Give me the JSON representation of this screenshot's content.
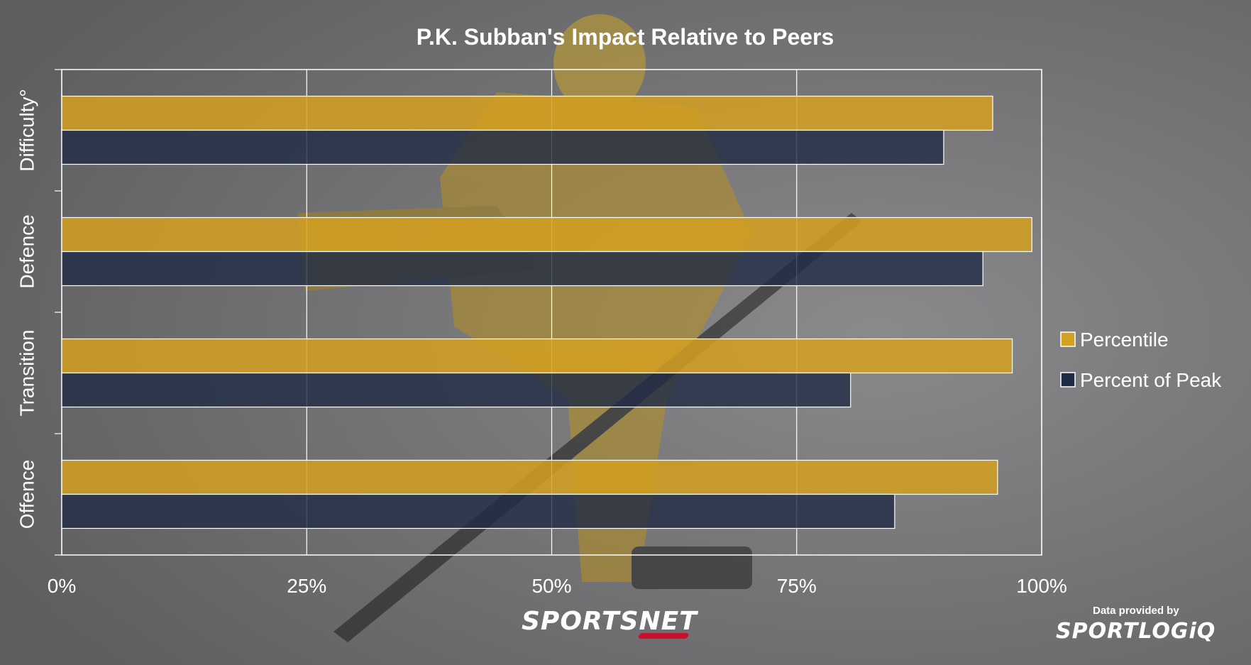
{
  "chart_data": {
    "type": "bar",
    "orientation": "horizontal",
    "title": "P.K. Subban's Impact Relative to Peers",
    "categories": [
      "Difficulty°",
      "Defence",
      "Transition",
      "Offence"
    ],
    "series": [
      {
        "name": "Percentile",
        "color": "#d4a020",
        "values": [
          0.95,
          0.99,
          0.97,
          0.955
        ]
      },
      {
        "name": "Percent of Peak",
        "color": "#1f2a44",
        "values": [
          0.9,
          0.94,
          0.805,
          0.85
        ]
      }
    ],
    "xlim": [
      0,
      1
    ],
    "xticks": [
      "0%",
      "25%",
      "50%",
      "75%",
      "100%"
    ],
    "grid": true,
    "legend_position": "right"
  },
  "footer": {
    "brand_logo": "SPORTSNET",
    "provider_caption": "Data provided by",
    "provider_logo": "SPORTLOGiQ"
  },
  "background_photo": "hockey-player-skating-icon"
}
